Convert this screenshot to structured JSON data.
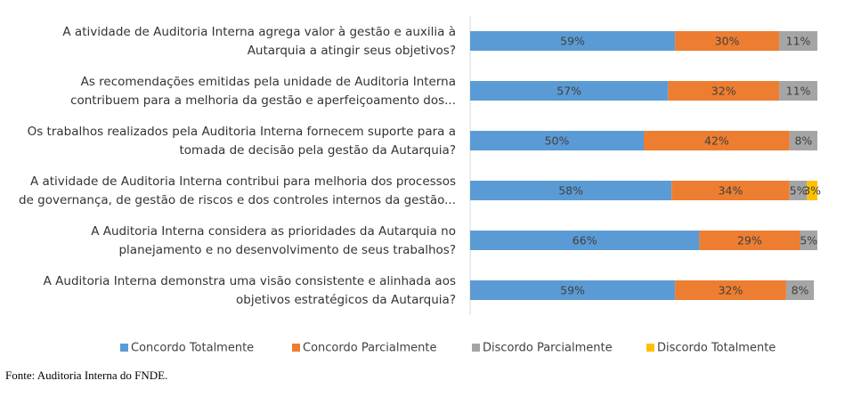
{
  "chart_data": {
    "type": "stacked-bar-horizontal",
    "categories": [
      [
        "A atividade de Auditoria Interna agrega valor à gestão e auxilia à",
        "Autarquia a atingir seus objetivos?"
      ],
      [
        "As recomendações emitidas pela unidade de Auditoria Interna",
        "contribuem para a melhoria da gestão e aperfeiçoamento dos..."
      ],
      [
        "Os trabalhos realizados pela Auditoria Interna fornecem suporte para a",
        "tomada de decisão pela gestão da Autarquia?"
      ],
      [
        "A atividade de Auditoria Interna contribui para melhoria dos processos",
        "de governança, de gestão de riscos e dos controles internos da gestão..."
      ],
      [
        "A Auditoria Interna considera as prioridades da Autarquia no",
        "planejamento e no desenvolvimento de seus trabalhos?"
      ],
      [
        "A Auditoria Interna demonstra uma visão consistente e alinhada aos",
        "objetivos estratégicos da Autarquia?"
      ]
    ],
    "series": [
      {
        "name": "Concordo Totalmente",
        "color": "#5b9bd5",
        "values": [
          59,
          57,
          50,
          58,
          66,
          59
        ],
        "value_labels": [
          "59%",
          "57%",
          "50%",
          "58%",
          "66%",
          "59%"
        ]
      },
      {
        "name": "Concordo Parcialmente",
        "color": "#ed7d31",
        "values": [
          30,
          32,
          42,
          34,
          29,
          32
        ],
        "value_labels": [
          "30%",
          "32%",
          "42%",
          "34%",
          "29%",
          "32%"
        ]
      },
      {
        "name": "Discordo Parcialmente",
        "color": "#a5a5a5",
        "values": [
          11,
          11,
          8,
          5,
          5,
          8
        ],
        "value_labels": [
          "11%",
          "11%",
          "8%",
          "5%",
          "5%",
          "8%"
        ]
      },
      {
        "name": "Discordo Totalmente",
        "color": "#ffc000",
        "values": [
          null,
          null,
          null,
          3,
          null,
          null
        ],
        "value_labels": [
          null,
          null,
          null,
          "3%",
          null,
          null
        ]
      }
    ],
    "legend": "bottom",
    "source": "Fonte: Auditoria Interna do FNDE."
  }
}
